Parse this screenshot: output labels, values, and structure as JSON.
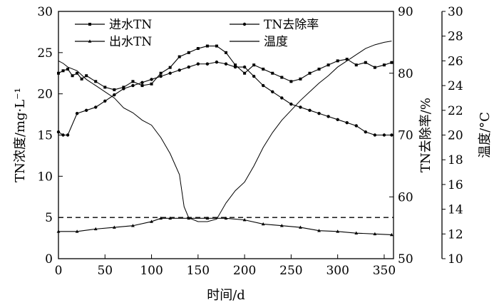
{
  "chart_data": {
    "type": "line",
    "xlabel": "时间/d",
    "ylabel_left": "TN浓度/mg·L⁻¹",
    "ylabel_right1": "TN去除率/%",
    "ylabel_right2": "温度/°C",
    "x_ticks": [
      0,
      50,
      100,
      150,
      200,
      250,
      300,
      350
    ],
    "y_left_ticks": [
      0,
      5,
      10,
      15,
      20,
      25,
      30
    ],
    "y_right1_ticks": [
      50,
      60,
      70,
      80,
      90
    ],
    "y_right2_ticks": [
      10,
      12,
      14,
      16,
      18,
      20,
      22,
      24,
      26,
      28,
      30
    ],
    "xlim": [
      0,
      360
    ],
    "ylim_left": [
      0,
      30
    ],
    "ylim_right1": [
      50,
      90
    ],
    "ylim_right2": [
      10,
      30
    ],
    "reference_line": {
      "axis": "left",
      "value": 5,
      "style": "dashed"
    },
    "legend_placement": "top, two columns",
    "series": [
      {
        "name": "进水TN",
        "axis": "left",
        "marker": "square",
        "x": [
          0,
          5,
          10,
          15,
          20,
          25,
          30,
          40,
          50,
          60,
          70,
          80,
          90,
          100,
          110,
          120,
          130,
          140,
          150,
          160,
          170,
          180,
          190,
          200,
          210,
          220,
          230,
          240,
          250,
          260,
          270,
          280,
          290,
          300,
          310,
          320,
          330,
          340,
          350,
          358
        ],
        "values": [
          22.5,
          22.8,
          23.0,
          22.2,
          22.5,
          21.8,
          22.2,
          21.5,
          20.8,
          20.5,
          20.8,
          21.5,
          21.0,
          21.2,
          22.5,
          23.2,
          24.5,
          25.0,
          25.5,
          25.8,
          25.8,
          25.0,
          23.5,
          22.5,
          23.5,
          23.0,
          22.5,
          22.0,
          21.5,
          21.8,
          22.5,
          23.0,
          23.5,
          24.0,
          24.2,
          23.5,
          23.8,
          23.2,
          23.5,
          23.8
        ]
      },
      {
        "name": "出水TN",
        "axis": "left",
        "marker": "triangle",
        "x": [
          0,
          20,
          40,
          60,
          80,
          100,
          110,
          120,
          140,
          160,
          180,
          200,
          220,
          240,
          260,
          280,
          300,
          320,
          340,
          358
        ],
        "values": [
          3.3,
          3.3,
          3.6,
          3.8,
          4.0,
          4.5,
          4.9,
          4.9,
          4.9,
          4.9,
          4.9,
          4.7,
          4.2,
          4.0,
          3.8,
          3.4,
          3.3,
          3.1,
          3.0,
          2.9
        ]
      },
      {
        "name": "TN去除率",
        "axis": "right1",
        "marker": "circle",
        "x": [
          0,
          5,
          10,
          20,
          30,
          40,
          50,
          60,
          70,
          80,
          90,
          100,
          110,
          120,
          130,
          140,
          150,
          160,
          170,
          180,
          190,
          200,
          210,
          220,
          230,
          240,
          250,
          260,
          270,
          280,
          290,
          300,
          310,
          320,
          330,
          340,
          350,
          358
        ],
        "values": [
          70.5,
          70.0,
          70.0,
          73.5,
          74.0,
          74.5,
          75.5,
          76.5,
          77.5,
          78.0,
          78.5,
          79.0,
          79.5,
          80.0,
          80.5,
          81.0,
          81.5,
          81.5,
          81.8,
          81.5,
          81.0,
          81.0,
          79.5,
          78.0,
          77.0,
          76.0,
          75.0,
          74.5,
          74.0,
          73.5,
          73.0,
          72.5,
          72.0,
          71.5,
          70.5,
          70.0,
          70.0,
          70.0
        ]
      },
      {
        "name": "温度",
        "axis": "right2",
        "marker": "none",
        "x": [
          0,
          5,
          10,
          20,
          30,
          40,
          50,
          60,
          70,
          80,
          90,
          100,
          110,
          120,
          130,
          135,
          140,
          150,
          160,
          170,
          180,
          190,
          200,
          210,
          220,
          230,
          240,
          250,
          260,
          270,
          280,
          290,
          300,
          310,
          320,
          330,
          340,
          350,
          358
        ],
        "values": [
          26.0,
          25.8,
          25.5,
          25.2,
          24.5,
          24.0,
          23.5,
          23.0,
          22.2,
          21.8,
          21.2,
          20.8,
          19.8,
          18.5,
          16.8,
          14.2,
          13.3,
          13.0,
          13.0,
          13.2,
          14.5,
          15.5,
          16.2,
          17.5,
          19.0,
          20.2,
          21.2,
          22.0,
          22.8,
          23.5,
          24.2,
          24.8,
          25.5,
          26.0,
          26.5,
          27.0,
          27.3,
          27.5,
          27.6
        ]
      }
    ]
  }
}
